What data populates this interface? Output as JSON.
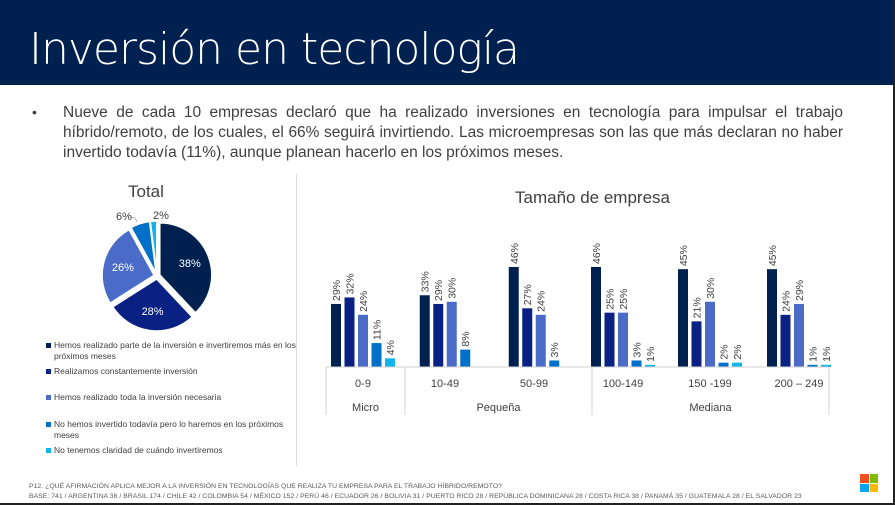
{
  "header": {
    "title": "Inversión en tecnología",
    "background": "#002050"
  },
  "bullet": {
    "marker": "•",
    "text": "Nueve de cada 10 empresas declaró que ha realizado inversiones en tecnología para impulsar el trabajo híbrido/remoto, de los cuales, el 66% seguirá invirtiendo. Las microempresas son las que más declaran no haber invertido todavía (11%), aunque planean hacerlo en los próximos meses."
  },
  "colors": {
    "series": [
      "#002050",
      "#0a2184",
      "#4a6bc8",
      "#0070c8",
      "#12b4ee"
    ]
  },
  "legend": [
    "Hemos realizado parte de la inversión e invertiremos más en los próximos meses",
    "Realizamos constantemente inversión",
    "Hemos realizado toda la inversión necesaria",
    "No hemos invertido todavía pero lo haremos en los próximos meses",
    "No tenemos claridad de cuándo invertiremos"
  ],
  "chart_data": [
    {
      "type": "pie",
      "title": "Total",
      "labels": [
        "Hemos realizado parte de la inversión e invertiremos más en los próximos meses",
        "Realizamos constantemente inversión",
        "Hemos realizado toda la inversión necesaria",
        "No hemos invertido todavía pero lo haremos en los próximos meses",
        "No tenemos claridad de cuándo invertiremos"
      ],
      "values": [
        38,
        28,
        26,
        6,
        2
      ],
      "value_labels": [
        "38%",
        "28%",
        "26%",
        "6%",
        "2%"
      ],
      "legend_position": "bottom"
    },
    {
      "type": "bar",
      "title": "Tamaño de empresa",
      "categories": [
        "0-9",
        "10-49",
        "50-99",
        "100-149",
        "150 -199",
        "200 – 249"
      ],
      "category_groups": [
        {
          "label": "Micro",
          "span": 1
        },
        {
          "label": "Pequeña",
          "span": 2
        },
        {
          "label": "Mediana",
          "span": 3
        }
      ],
      "series": [
        {
          "name": "Hemos realizado parte de la inversión e invertiremos más en los próximos meses",
          "values": [
            29,
            33,
            46,
            46,
            45,
            45
          ]
        },
        {
          "name": "Realizamos constantemente inversión",
          "values": [
            32,
            29,
            27,
            25,
            21,
            24
          ]
        },
        {
          "name": "Hemos realizado toda la inversión necesaria",
          "values": [
            24,
            30,
            24,
            25,
            30,
            29
          ]
        },
        {
          "name": "No hemos invertido todavía pero lo haremos en los próximos meses",
          "values": [
            11,
            8,
            3,
            3,
            2,
            1
          ]
        },
        {
          "name": "No tenemos claridad de cuándo invertiremos",
          "values": [
            4,
            null,
            null,
            1,
            2,
            1
          ]
        }
      ],
      "value_suffix": "%",
      "ylim": [
        0,
        50
      ],
      "grid": false,
      "xlabel": "",
      "ylabel": ""
    }
  ],
  "footer": {
    "question": "P12. ¿QUÉ AFIRMACIÓN APLICA MEJOR A LA INVERSIÓN EN TECNOLOGÍAS QUE REALIZA TU EMPRESA PARA EL TRABAJO HÍBRIDO/REMOTO?",
    "base": "BASE: 741 / ARGENTINA 36 / BRASIL 174 / CHILE 42 / COLOMBIA 54 / MÉXICO 152 / PERÚ 46 / ECUADOR 26 / BOLIVIA 31 / PUERTO RICO 28 / REPÚBLICA DOMINICANA 28 / COSTA RICA 38 / PANAMÁ 35 / GUATEMALA 28 / EL SALVADOR 23"
  },
  "logo": {
    "name": "microsoft-logo",
    "colors": [
      "#f25022",
      "#7fba00",
      "#00a4ef",
      "#ffb900"
    ]
  }
}
